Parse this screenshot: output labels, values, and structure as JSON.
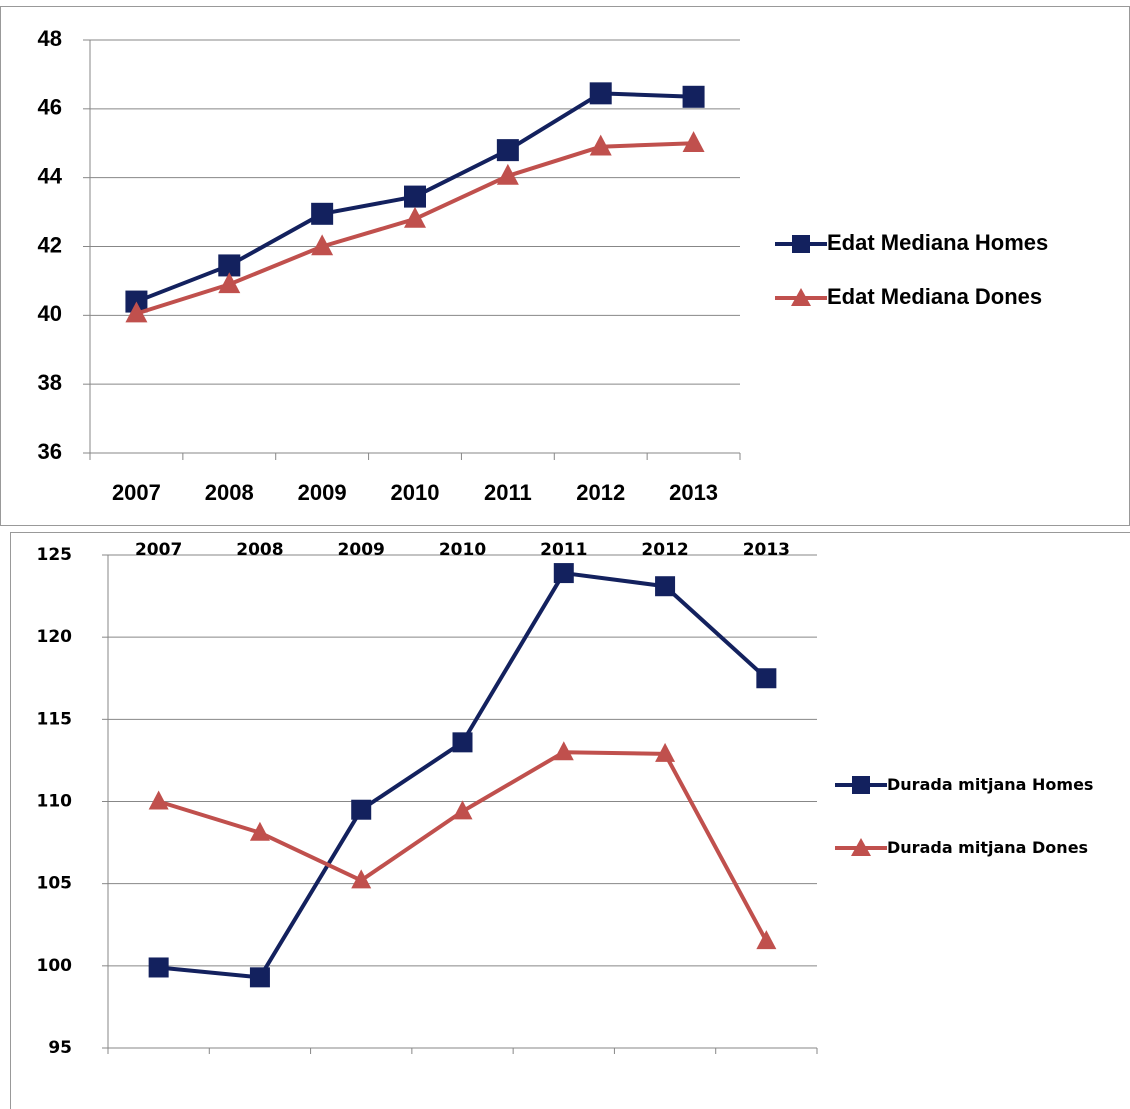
{
  "chart_data": [
    {
      "type": "line",
      "categories": [
        "2007",
        "2008",
        "2009",
        "2010",
        "2011",
        "2012",
        "2013"
      ],
      "series": [
        {
          "name": "Edat Mediana Homes",
          "color": "#13215e",
          "marker": "square",
          "values": [
            40.4,
            41.45,
            42.95,
            43.45,
            44.8,
            46.45,
            46.35
          ]
        },
        {
          "name": "Edat Mediana Dones",
          "color": "#c0504d",
          "marker": "triangle",
          "values": [
            40.05,
            40.9,
            42.0,
            42.8,
            44.05,
            44.9,
            45.0
          ]
        }
      ],
      "ylim": [
        36,
        48
      ],
      "yticks": [
        36,
        38,
        40,
        42,
        44,
        46,
        48
      ],
      "grid": true,
      "legend": "right"
    },
    {
      "type": "line",
      "categories": [
        "2007",
        "2008",
        "2009",
        "2010",
        "2011",
        "2012",
        "2013"
      ],
      "series": [
        {
          "name": "Durada mitjana Homes",
          "color": "#13215e",
          "marker": "square",
          "values": [
            99.9,
            99.3,
            109.5,
            113.6,
            123.9,
            123.1,
            117.5
          ]
        },
        {
          "name": "Durada mitjana Dones",
          "color": "#c0504d",
          "marker": "triangle",
          "values": [
            110.0,
            108.1,
            105.2,
            109.4,
            113.0,
            112.9,
            101.5
          ]
        }
      ],
      "ylim": [
        95,
        125
      ],
      "yticks": [
        95,
        100,
        105,
        110,
        115,
        120,
        125
      ],
      "grid": true,
      "legend": "right"
    }
  ]
}
